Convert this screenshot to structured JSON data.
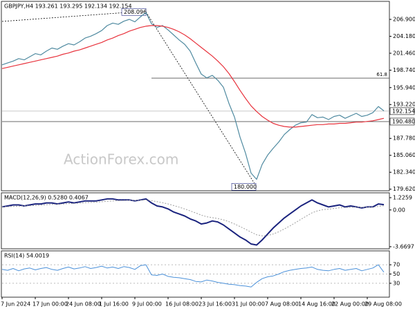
{
  "chart_data": [
    {
      "type": "line",
      "title": "GBPJPY,H4 193.261 193.295 192.134 192.154",
      "watermark": "ActionForex.com",
      "xlim": [
        0,
        70
      ],
      "ylim": [
        179.37,
        209.79
      ],
      "yticks": [
        {
          "value": 206.9,
          "label": "206.900"
        },
        {
          "value": 204.18,
          "label": "204.180"
        },
        {
          "value": 201.46,
          "label": "201.460"
        },
        {
          "value": 198.74,
          "label": "198.740"
        },
        {
          "value": 195.94,
          "label": "195.940"
        },
        {
          "value": 193.22,
          "label": "193.220"
        },
        {
          "value": 187.78,
          "label": "187.780"
        },
        {
          "value": 185.06,
          "label": "185.060"
        },
        {
          "value": 182.34,
          "label": "182.340"
        },
        {
          "value": 179.62,
          "label": "179.620"
        }
      ],
      "support": {
        "value": 190.48,
        "label": "190.480"
      },
      "last_price": {
        "value": 192.154,
        "label": "192.154"
      },
      "fib": {
        "level": 61.8,
        "value": 197.46
      },
      "high": {
        "at": 26,
        "value": 208.096
      },
      "low": {
        "at": 46,
        "value": 180,
        "label": "180.000"
      },
      "series": [
        {
          "name": "GBPJPY",
          "color": "#4f8aa0",
          "width": 1.2,
          "values": [
            199.6,
            199.9,
            200.2,
            200.6,
            200.4,
            200.9,
            201.4,
            201.2,
            201.8,
            202.3,
            202.1,
            202.6,
            203.0,
            202.8,
            203.3,
            203.9,
            204.2,
            204.6,
            205.1,
            205.9,
            206.3,
            206.1,
            206.6,
            206.9,
            206.5,
            207.3,
            208.0,
            206.2,
            205.6,
            205.9,
            205.2,
            204.4,
            203.6,
            202.9,
            201.8,
            199.9,
            198.1,
            197.5,
            197.9,
            197.1,
            196.0,
            193.4,
            191.2,
            188.0,
            185.4,
            182.2,
            181.2,
            183.6,
            185.1,
            186.2,
            187.2,
            188.4,
            189.2,
            189.9,
            190.3,
            190.4,
            191.6,
            191.1,
            191.2,
            190.8,
            191.3,
            191.5,
            191.0,
            191.4,
            191.8,
            191.3,
            191.5,
            191.9,
            192.9,
            192.2
          ]
        },
        {
          "name": "MA",
          "color": "#e8323c",
          "width": 1.2,
          "values": [
            199.0,
            199.2,
            199.4,
            199.6,
            199.8,
            200.0,
            200.2,
            200.4,
            200.6,
            200.8,
            201.0,
            201.3,
            201.5,
            201.8,
            202.0,
            202.3,
            202.6,
            202.9,
            203.2,
            203.6,
            203.9,
            204.3,
            204.6,
            205.0,
            205.3,
            205.6,
            205.8,
            205.9,
            205.9,
            205.8,
            205.6,
            205.3,
            204.9,
            204.4,
            203.8,
            203.1,
            202.4,
            201.7,
            201.0,
            200.2,
            199.3,
            198.2,
            196.9,
            195.5,
            194.2,
            193.0,
            192.1,
            191.3,
            190.7,
            190.2,
            189.9,
            189.7,
            189.6,
            189.6,
            189.7,
            189.8,
            189.9,
            190.0,
            190.0,
            190.1,
            190.1,
            190.2,
            190.2,
            190.3,
            190.4,
            190.4,
            190.5,
            190.6,
            190.8,
            191.0
          ]
        }
      ]
    },
    {
      "type": "line",
      "title": "MACD(12,26,9) 0.5280 0.4067",
      "xlim": [
        0,
        70
      ],
      "ylim": [
        -3.88,
        1.71
      ],
      "yticks": [
        1.2259,
        {
          "value": 0,
          "label": "0.00"
        },
        -3.6697
      ],
      "series": [
        {
          "name": "MACD",
          "color": "#1a237e",
          "width": 2,
          "values": [
            0.3,
            0.4,
            0.5,
            0.5,
            0.4,
            0.5,
            0.6,
            0.6,
            0.7,
            0.7,
            0.6,
            0.7,
            0.8,
            0.7,
            0.8,
            0.9,
            0.9,
            0.9,
            1.0,
            1.1,
            1.1,
            1.0,
            1.0,
            1.0,
            0.9,
            1.0,
            1.1,
            0.7,
            0.4,
            0.3,
            0.1,
            -0.2,
            -0.4,
            -0.6,
            -0.9,
            -1.1,
            -1.4,
            -1.3,
            -1.1,
            -1.2,
            -1.5,
            -1.9,
            -2.3,
            -2.7,
            -3.0,
            -3.4,
            -3.5,
            -3.0,
            -2.4,
            -1.8,
            -1.3,
            -0.8,
            -0.4,
            0.0,
            0.4,
            0.7,
            1.0,
            0.7,
            0.5,
            0.3,
            0.4,
            0.5,
            0.3,
            0.4,
            0.3,
            0.2,
            0.3,
            0.3,
            0.6,
            0.53
          ]
        },
        {
          "name": "Signal",
          "color": "#9e9e9e",
          "width": 1,
          "dash": true,
          "values": [
            0.3,
            0.32,
            0.35,
            0.38,
            0.4,
            0.42,
            0.45,
            0.48,
            0.52,
            0.55,
            0.57,
            0.6,
            0.63,
            0.65,
            0.68,
            0.72,
            0.75,
            0.78,
            0.82,
            0.86,
            0.9,
            0.92,
            0.94,
            0.96,
            0.96,
            0.97,
            0.99,
            0.93,
            0.83,
            0.72,
            0.6,
            0.44,
            0.28,
            0.1,
            -0.1,
            -0.3,
            -0.52,
            -0.68,
            -0.77,
            -0.86,
            -0.99,
            -1.17,
            -1.4,
            -1.66,
            -1.93,
            -2.22,
            -2.48,
            -2.58,
            -2.55,
            -2.4,
            -2.18,
            -1.9,
            -1.6,
            -1.28,
            -0.94,
            -0.61,
            -0.29,
            -0.09,
            0.03,
            0.08,
            0.15,
            0.22,
            0.24,
            0.27,
            0.28,
            0.27,
            0.28,
            0.28,
            0.35,
            0.41
          ]
        }
      ]
    },
    {
      "type": "line",
      "title": "RSI(14) 54.0019",
      "grid": true,
      "xlim": [
        0,
        70
      ],
      "ylim": [
        0,
        100
      ],
      "yticks": [
        70,
        50,
        30
      ],
      "xticks": [
        {
          "value": 0,
          "label": "7 Jun 2024"
        },
        {
          "value": 6,
          "label": "17 Jun 00:00"
        },
        {
          "value": 12,
          "label": "24 Jun 08:00"
        },
        {
          "value": 18,
          "label": "1 Jul 16:00"
        },
        {
          "value": 24,
          "label": "9 Jul 00:00"
        },
        {
          "value": 30,
          "label": "16 Jul 08:00"
        },
        {
          "value": 36,
          "label": "23 Jul 16:00"
        },
        {
          "value": 42,
          "label": "31 Jul 00:00"
        },
        {
          "value": 48,
          "label": "7 Aug 08:00"
        },
        {
          "value": 54,
          "label": "14 Aug 16:00"
        },
        {
          "value": 60,
          "label": "22 Aug 00:00"
        },
        {
          "value": 66,
          "label": "29 Aug 08:00"
        }
      ],
      "series": [
        {
          "name": "RSI",
          "color": "#4a90d9",
          "width": 1,
          "values": [
            60,
            58,
            62,
            57,
            61,
            63,
            59,
            62,
            64,
            60,
            58,
            62,
            65,
            61,
            63,
            66,
            62,
            64,
            67,
            63,
            65,
            62,
            66,
            64,
            60,
            68,
            70,
            48,
            47,
            50,
            45,
            43,
            42,
            40,
            38,
            34,
            33,
            37,
            35,
            32,
            30,
            28,
            27,
            25,
            24,
            22,
            32,
            40,
            44,
            46,
            50,
            55,
            58,
            60,
            62,
            63,
            65,
            60,
            58,
            57,
            60,
            62,
            58,
            60,
            62,
            57,
            60,
            63,
            70,
            54
          ]
        }
      ]
    }
  ]
}
